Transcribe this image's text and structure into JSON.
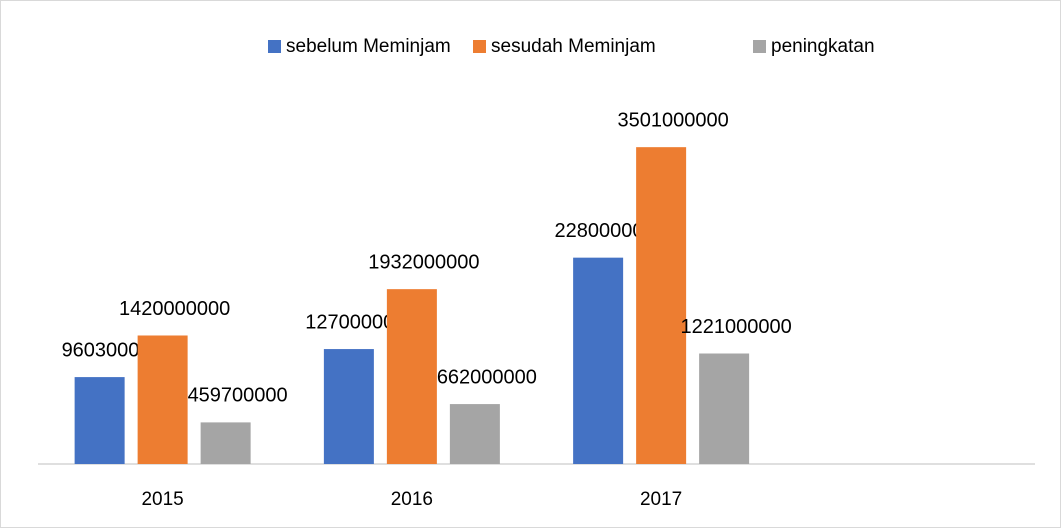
{
  "chart_data": {
    "type": "bar",
    "categories": [
      "2015",
      "2016",
      "2017",
      null
    ],
    "series": [
      {
        "name": "sebelum Meminjam",
        "color": "#4472c4",
        "values": [
          960300000,
          1270000000,
          2280000000,
          null
        ]
      },
      {
        "name": "sesudah Meminjam",
        "color": "#ed7d31",
        "values": [
          1420000000,
          1932000000,
          3501000000,
          null
        ]
      },
      {
        "name": "peningkatan",
        "color": "#a5a5a5",
        "values": [
          459700000,
          662000000,
          1221000000,
          null
        ]
      }
    ],
    "ylim": [
      0,
      4000000000
    ],
    "legend": "top"
  }
}
